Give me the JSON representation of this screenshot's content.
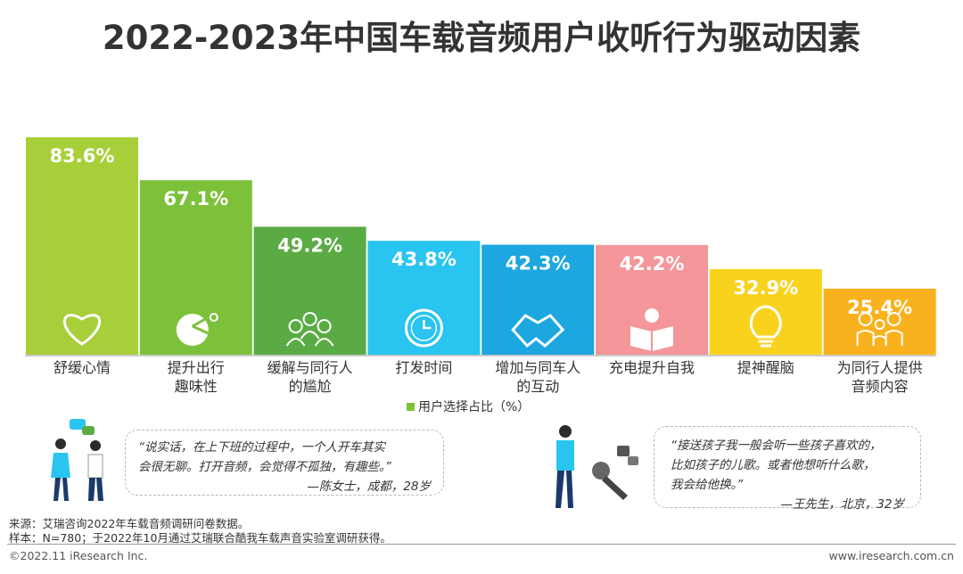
{
  "title": "2022-2023年中国车载音频用户收听行为驱动因素",
  "chart_data": {
    "type": "bar",
    "categories": [
      [
        "舒缓心情"
      ],
      [
        "提升出行",
        "趣味性"
      ],
      [
        "缓解与同行人",
        "的尴尬"
      ],
      [
        "打发时间"
      ],
      [
        "增加与同车人",
        "的互动"
      ],
      [
        "充电提升自我"
      ],
      [
        "提神醒脑"
      ],
      [
        "为同行人提供",
        "音频内容"
      ]
    ],
    "values": [
      83.6,
      67.1,
      49.2,
      43.8,
      42.3,
      42.2,
      32.9,
      25.4
    ],
    "labels": [
      "83.6%",
      "67.1%",
      "49.2%",
      "43.8%",
      "42.3%",
      "42.2%",
      "32.9%",
      "25.4%"
    ],
    "series": [
      {
        "name": "用户选择占比（%）",
        "values": [
          83.6,
          67.1,
          49.2,
          43.8,
          42.3,
          42.2,
          32.9,
          25.4
        ]
      }
    ],
    "colors": [
      "#a8cf3a",
      "#7dc13a",
      "#5bab45",
      "#29c4ef",
      "#1ca7e0",
      "#f4969a",
      "#f9d21d",
      "#f9b21d"
    ],
    "icons": [
      "heart-icon",
      "fun-icon",
      "group-icon",
      "clock-icon",
      "handshake-icon",
      "reading-icon",
      "bulb-icon",
      "family-icon"
    ],
    "legend_position": "bottom-center",
    "grid": false,
    "ylim": [
      0,
      83.6
    ]
  },
  "legend": {
    "label": "用户选择占比（%）"
  },
  "quotes": [
    {
      "lines": [
        "“说实话，在上下班的过程中，一个人开车其实",
        "会很无聊。打开音频，会觉得不孤独，有趣些。”"
      ],
      "sig": "—陈女士，成都，28岁"
    },
    {
      "lines": [
        "“接送孩子我一般会听一些孩子喜欢的，",
        "比如孩子的儿歌。或者他想听什么歌，",
        "我会给他换。”"
      ],
      "sig": "—王先生，北京，32岁"
    }
  ],
  "footer": {
    "source": "来源：艾瑞咨询2022年车载音频调研问卷数据。",
    "sample": "样本：N=780；于2022年10月通过艾瑞联合酷我车载声音实验室调研获得。",
    "copyright": "©2022.11 iResearch Inc.",
    "website": "www.iresearch.com.cn"
  }
}
